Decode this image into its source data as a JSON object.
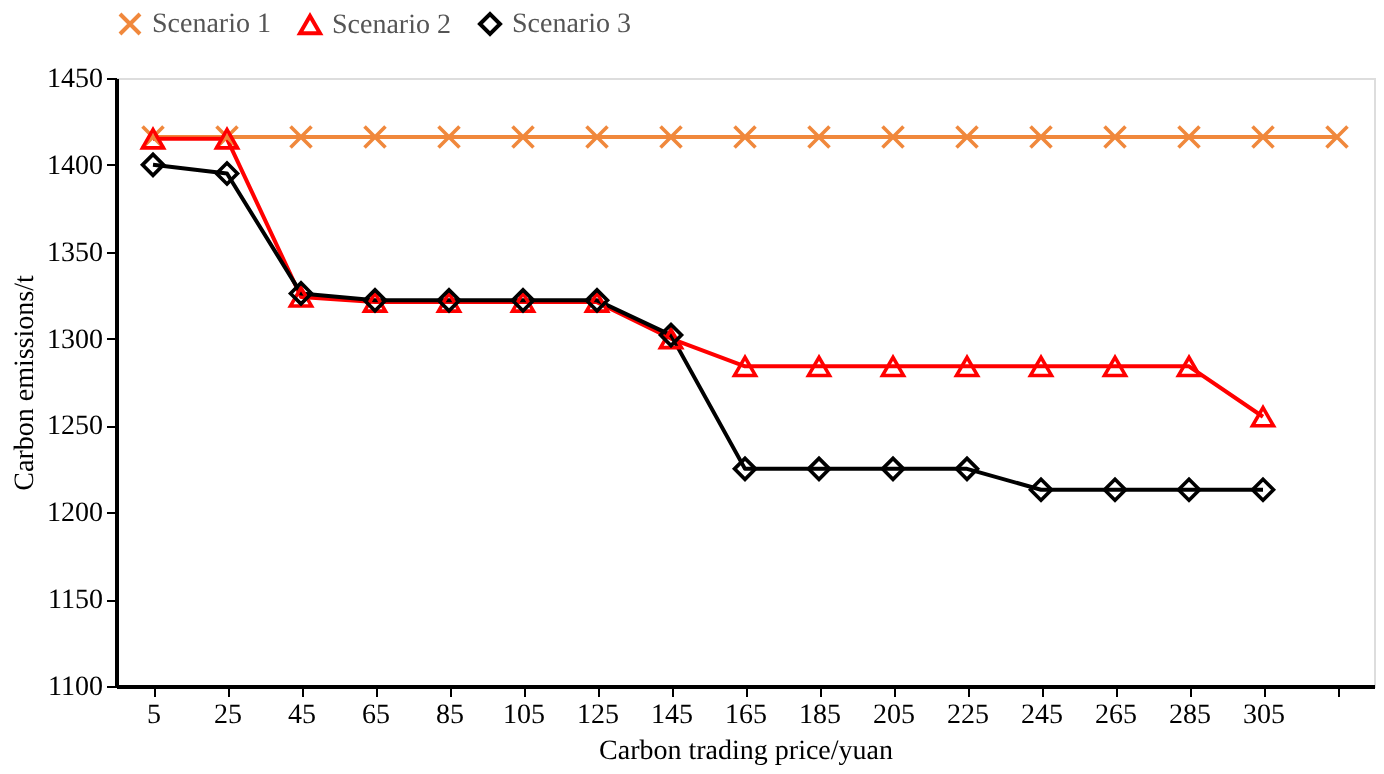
{
  "chart_data": {
    "type": "line",
    "xlabel": "Carbon trading price/yuan",
    "ylabel": "Carbon emissions/t",
    "categories": [
      "5",
      "25",
      "45",
      "65",
      "85",
      "105",
      "125",
      "145",
      "165",
      "185",
      "205",
      "225",
      "245",
      "265",
      "285",
      "305",
      null
    ],
    "ylim": [
      1100,
      1450
    ],
    "yticks": [
      1100,
      1150,
      1200,
      1250,
      1300,
      1350,
      1400,
      1450
    ],
    "grid": false,
    "legend": "top",
    "line_style": "solid",
    "series": [
      {
        "name": "Scenario 1",
        "color": "#f0883c",
        "marker": "cross",
        "values": [
          1416,
          1416,
          1416,
          1416,
          1416,
          1416,
          1416,
          1416,
          1416,
          1416,
          1416,
          1416,
          1416,
          1416,
          1416,
          1416,
          1416
        ]
      },
      {
        "name": "Scenario 2",
        "color": "#ff0000",
        "marker": "triangle",
        "values": [
          1415,
          1415,
          1324,
          1321,
          1321,
          1321,
          1321,
          1300,
          1284,
          1284,
          1284,
          1284,
          1284,
          1284,
          1284,
          1255,
          null
        ]
      },
      {
        "name": "Scenario 3",
        "color": "#000000",
        "marker": "diamond",
        "values": [
          1400,
          1395,
          1326,
          1322,
          1322,
          1322,
          1322,
          1302,
          1225,
          1225,
          1225,
          1225,
          1213,
          1213,
          1213,
          1213,
          null
        ]
      }
    ]
  }
}
